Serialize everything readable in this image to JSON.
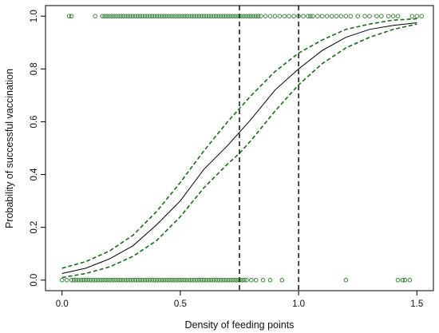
{
  "chart_data": {
    "type": "line",
    "xlabel": "Density of feeding points",
    "ylabel": "Probability of successful vaccination",
    "xlim": [
      -0.07,
      1.57
    ],
    "ylim": [
      -0.04,
      1.04
    ],
    "x_ticks": [
      "0.0",
      "0.5",
      "1.0",
      "1.5"
    ],
    "y_ticks": [
      "0.0",
      "0.2",
      "0.4",
      "0.6",
      "0.8",
      "1.0"
    ],
    "grid": false,
    "series": [
      {
        "style": "solid black line (fitted logistic curve)",
        "x": [
          0.0,
          0.1,
          0.2,
          0.3,
          0.4,
          0.5,
          0.6,
          0.7,
          0.75,
          0.8,
          0.9,
          1.0,
          1.1,
          1.2,
          1.3,
          1.4,
          1.5
        ],
        "y": [
          0.025,
          0.045,
          0.08,
          0.13,
          0.21,
          0.3,
          0.42,
          0.51,
          0.56,
          0.61,
          0.72,
          0.8,
          0.87,
          0.92,
          0.95,
          0.965,
          0.975
        ]
      },
      {
        "style": "dashed dark green (upper confidence bound)",
        "x": [
          0.0,
          0.1,
          0.2,
          0.3,
          0.4,
          0.5,
          0.6,
          0.7,
          0.75,
          0.8,
          0.9,
          1.0,
          1.1,
          1.2,
          1.3,
          1.4,
          1.5
        ],
        "y": [
          0.045,
          0.07,
          0.11,
          0.17,
          0.26,
          0.37,
          0.49,
          0.6,
          0.65,
          0.7,
          0.79,
          0.86,
          0.91,
          0.95,
          0.97,
          0.985,
          0.99
        ]
      },
      {
        "style": "dashed dark green (lower confidence bound)",
        "x": [
          0.0,
          0.1,
          0.2,
          0.3,
          0.4,
          0.5,
          0.6,
          0.7,
          0.75,
          0.8,
          0.9,
          1.0,
          1.1,
          1.2,
          1.3,
          1.4,
          1.5
        ],
        "y": [
          0.01,
          0.025,
          0.05,
          0.09,
          0.15,
          0.24,
          0.35,
          0.44,
          0.48,
          0.53,
          0.64,
          0.74,
          0.82,
          0.88,
          0.92,
          0.95,
          0.97
        ]
      }
    ],
    "reference_lines_x": [
      0.75,
      1.0
    ],
    "points": {
      "style": "open dark green circles",
      "y1_x": [
        0.03,
        0.04,
        0.14,
        0.17,
        0.18,
        0.19,
        0.2,
        0.21,
        0.22,
        0.23,
        0.24,
        0.25,
        0.26,
        0.27,
        0.28,
        0.29,
        0.3,
        0.31,
        0.32,
        0.33,
        0.34,
        0.35,
        0.36,
        0.37,
        0.38,
        0.39,
        0.4,
        0.41,
        0.42,
        0.43,
        0.44,
        0.45,
        0.46,
        0.47,
        0.48,
        0.49,
        0.5,
        0.51,
        0.52,
        0.53,
        0.54,
        0.55,
        0.56,
        0.57,
        0.58,
        0.59,
        0.6,
        0.61,
        0.62,
        0.63,
        0.64,
        0.65,
        0.66,
        0.67,
        0.68,
        0.69,
        0.7,
        0.71,
        0.72,
        0.73,
        0.74,
        0.75,
        0.76,
        0.77,
        0.78,
        0.79,
        0.8,
        0.81,
        0.82,
        0.83,
        0.84,
        0.86,
        0.88,
        0.9,
        0.92,
        0.94,
        0.96,
        0.98,
        1.0,
        1.02,
        1.04,
        1.05,
        1.06,
        1.08,
        1.1,
        1.12,
        1.14,
        1.16,
        1.18,
        1.2,
        1.22,
        1.25,
        1.28,
        1.3,
        1.33,
        1.35,
        1.38,
        1.4,
        1.42,
        1.48,
        1.5,
        1.52
      ],
      "y0_x": [
        0.0,
        0.02,
        0.04,
        0.05,
        0.06,
        0.07,
        0.08,
        0.09,
        0.1,
        0.11,
        0.12,
        0.13,
        0.14,
        0.15,
        0.16,
        0.17,
        0.18,
        0.19,
        0.2,
        0.21,
        0.22,
        0.23,
        0.24,
        0.25,
        0.26,
        0.27,
        0.28,
        0.29,
        0.3,
        0.31,
        0.32,
        0.33,
        0.34,
        0.35,
        0.36,
        0.37,
        0.38,
        0.39,
        0.4,
        0.41,
        0.42,
        0.43,
        0.44,
        0.45,
        0.46,
        0.47,
        0.48,
        0.49,
        0.5,
        0.51,
        0.52,
        0.53,
        0.54,
        0.55,
        0.56,
        0.57,
        0.58,
        0.59,
        0.6,
        0.61,
        0.62,
        0.63,
        0.64,
        0.65,
        0.66,
        0.67,
        0.68,
        0.69,
        0.7,
        0.71,
        0.72,
        0.73,
        0.74,
        0.75,
        0.76,
        0.77,
        0.78,
        0.8,
        0.82,
        0.85,
        0.88,
        0.93,
        1.2,
        1.42,
        1.44,
        1.45,
        1.47
      ]
    },
    "colors": {
      "curve": "#000000",
      "ci": "#1a6b1a",
      "points": "#2a7a2a",
      "reference_lines": "#000000"
    }
  }
}
